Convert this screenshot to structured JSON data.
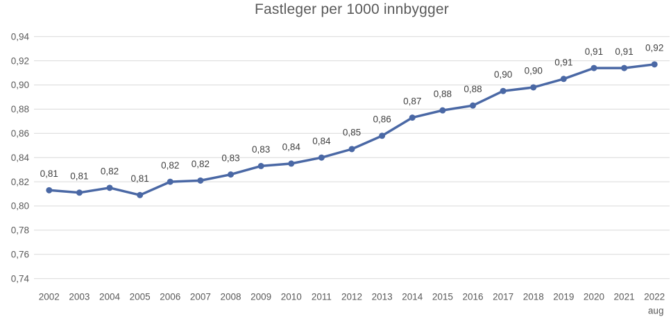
{
  "colors": {
    "line": "#4A68A5",
    "grid": "#D9D9D9",
    "title_text": "#595959",
    "axis_text": "#595959",
    "data_label_text": "#404040",
    "background": "#FFFFFF"
  },
  "chart_data": {
    "type": "line",
    "title": "Fastleger per 1000 innbygger",
    "categories": [
      "2002",
      "2003",
      "2004",
      "2005",
      "2006",
      "2007",
      "2008",
      "2009",
      "2010",
      "2011",
      "2012",
      "2013",
      "2014",
      "2015",
      "2016",
      "2017",
      "2018",
      "2019",
      "2020",
      "2021",
      "2022"
    ],
    "x_last_sublabel": "aug",
    "values": [
      0.813,
      0.811,
      0.815,
      0.809,
      0.82,
      0.821,
      0.826,
      0.833,
      0.835,
      0.84,
      0.847,
      0.858,
      0.873,
      0.879,
      0.883,
      0.895,
      0.898,
      0.905,
      0.914,
      0.914,
      0.917
    ],
    "data_labels": [
      "0,81",
      "0,81",
      "0,82",
      "0,81",
      "0,82",
      "0,82",
      "0,83",
      "0,83",
      "0,84",
      "0,84",
      "0,85",
      "0,86",
      "0,87",
      "0,88",
      "0,88",
      "0,90",
      "0,90",
      "0,91",
      "0,91",
      "0,91",
      "0,92"
    ],
    "y_ticks": [
      "0,94",
      "0,92",
      "0,90",
      "0,88",
      "0,86",
      "0,84",
      "0,82",
      "0,80",
      "0,78",
      "0,76",
      "0,74"
    ],
    "ylim": [
      0.74,
      0.94
    ],
    "xlabel": "",
    "ylabel": "",
    "grid": true,
    "legend": "none",
    "marker": "circle",
    "data_label_position": "above"
  }
}
